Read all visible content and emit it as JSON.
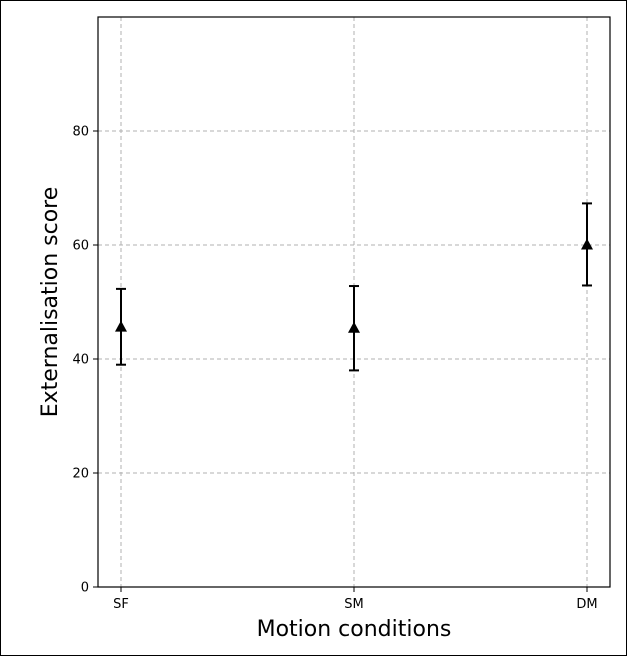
{
  "chart_data": {
    "type": "scatter",
    "title": "",
    "xlabel": "Motion conditions",
    "ylabel": "Externalisation score",
    "categories": [
      "SF",
      "SM",
      "DM"
    ],
    "series": [
      {
        "marker": "triangle",
        "color": "#000000",
        "values": [
          45.6,
          45.4,
          60.0
        ],
        "error_low": [
          39.0,
          38.0,
          52.9
        ],
        "error_high": [
          52.3,
          52.8,
          67.3
        ]
      }
    ],
    "ylim": [
      0,
      100
    ],
    "yticks": [
      0,
      20,
      40,
      60,
      80
    ],
    "ytick_labels": [
      "0",
      "20",
      "40",
      "60",
      "80"
    ],
    "grid": true,
    "grid_style": "dashed",
    "grid_color": "#b0b0b0"
  }
}
